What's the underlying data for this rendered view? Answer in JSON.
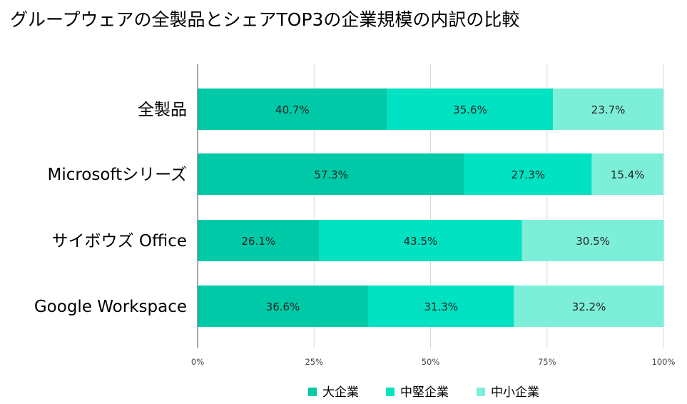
{
  "chart_data": {
    "type": "bar",
    "orientation": "horizontal",
    "stacked": true,
    "title": "グループウェアの全製品とシェアTOP3の企業規模の内訳の比較",
    "categories": [
      "全製品",
      "Microsoftシリーズ",
      "サイボウズ Office",
      "Google Workspace"
    ],
    "series": [
      {
        "name": "大企業",
        "values": [
          40.7,
          57.3,
          26.1,
          36.6
        ],
        "labels": [
          "40.7%",
          "57.3%",
          "26.1%",
          "36.6%"
        ],
        "color": "#00c9a7"
      },
      {
        "name": "中堅企業",
        "values": [
          35.6,
          27.3,
          43.5,
          31.3
        ],
        "labels": [
          "35.6%",
          "27.3%",
          "43.5%",
          "31.3%"
        ],
        "color": "#00e2c2"
      },
      {
        "name": "中小企業",
        "values": [
          23.7,
          15.4,
          30.5,
          32.2
        ],
        "labels": [
          "23.7%",
          "15.4%",
          "30.5%",
          "32.2%"
        ],
        "color": "#7defd9"
      }
    ],
    "xlim": [
      0,
      100
    ],
    "xticks": [
      0,
      25,
      50,
      75,
      100
    ],
    "xtick_labels": [
      "0%",
      "25%",
      "50%",
      "75%",
      "100%"
    ],
    "grid": true,
    "legend_position": "bottom-right"
  }
}
